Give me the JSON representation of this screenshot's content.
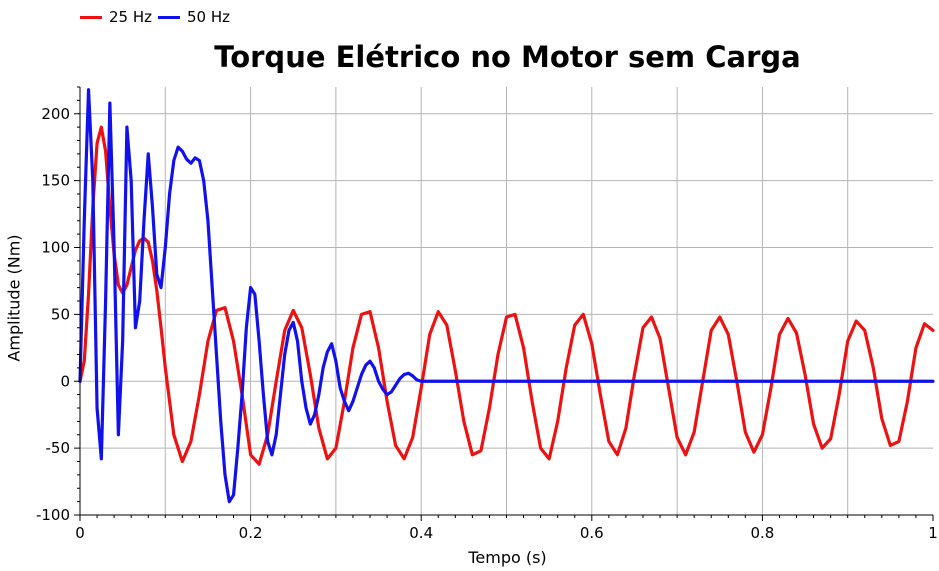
{
  "chart_data": {
    "type": "line",
    "title": "Torque Elétrico no Motor sem Carga",
    "xlabel": "Tempo (s)",
    "ylabel": "Amplitude (Nm)",
    "xlim": [
      0,
      1
    ],
    "ylim": [
      -100,
      220
    ],
    "x_ticks": [
      "0",
      "0.2",
      "0.4",
      "0.6",
      "0.8",
      "1"
    ],
    "y_ticks": [
      "-100",
      "-50",
      "0",
      "50",
      "100",
      "150",
      "200"
    ],
    "grid": true,
    "legend_position": "top-left",
    "series": [
      {
        "name": "25 Hz",
        "color": "#ee1111",
        "x": [
          0,
          0.005,
          0.01,
          0.015,
          0.02,
          0.025,
          0.03,
          0.035,
          0.04,
          0.045,
          0.05,
          0.055,
          0.06,
          0.065,
          0.07,
          0.075,
          0.08,
          0.085,
          0.09,
          0.095,
          0.1,
          0.11,
          0.12,
          0.13,
          0.14,
          0.15,
          0.16,
          0.17,
          0.18,
          0.19,
          0.2,
          0.21,
          0.22,
          0.23,
          0.24,
          0.25,
          0.26,
          0.27,
          0.28,
          0.29,
          0.3,
          0.31,
          0.32,
          0.33,
          0.34,
          0.35,
          0.36,
          0.37,
          0.38,
          0.39,
          0.4,
          0.41,
          0.42,
          0.43,
          0.44,
          0.45,
          0.46,
          0.47,
          0.48,
          0.49,
          0.5,
          0.51,
          0.52,
          0.53,
          0.54,
          0.55,
          0.56,
          0.57,
          0.58,
          0.59,
          0.6,
          0.61,
          0.62,
          0.63,
          0.64,
          0.65,
          0.66,
          0.67,
          0.68,
          0.69,
          0.7,
          0.71,
          0.72,
          0.73,
          0.74,
          0.75,
          0.76,
          0.77,
          0.78,
          0.79,
          0.8,
          0.81,
          0.82,
          0.83,
          0.84,
          0.85,
          0.86,
          0.87,
          0.88,
          0.89,
          0.9,
          0.91,
          0.92,
          0.93,
          0.94,
          0.95,
          0.96,
          0.97,
          0.98,
          0.99,
          1.0
        ],
        "values": [
          0,
          15,
          65,
          130,
          178,
          190,
          172,
          130,
          95,
          72,
          66,
          72,
          85,
          98,
          105,
          107,
          104,
          90,
          68,
          40,
          10,
          -40,
          -60,
          -45,
          -10,
          30,
          53,
          55,
          30,
          -10,
          -55,
          -62,
          -40,
          0,
          38,
          53,
          40,
          5,
          -35,
          -58,
          -50,
          -15,
          25,
          50,
          52,
          25,
          -15,
          -48,
          -58,
          -42,
          -5,
          35,
          52,
          42,
          8,
          -30,
          -55,
          -52,
          -20,
          20,
          48,
          50,
          25,
          -15,
          -50,
          -58,
          -30,
          10,
          42,
          50,
          28,
          -10,
          -45,
          -55,
          -35,
          5,
          40,
          48,
          32,
          -5,
          -42,
          -55,
          -38,
          0,
          38,
          48,
          35,
          0,
          -38,
          -53,
          -40,
          -5,
          35,
          47,
          36,
          5,
          -32,
          -50,
          -43,
          -10,
          30,
          45,
          38,
          10,
          -28,
          -48,
          -45,
          -15,
          25,
          43,
          38
        ]
      },
      {
        "name": "50 Hz",
        "color": "#1111ee",
        "x": [
          0,
          0.005,
          0.01,
          0.015,
          0.02,
          0.025,
          0.03,
          0.035,
          0.04,
          0.045,
          0.05,
          0.055,
          0.06,
          0.065,
          0.07,
          0.075,
          0.08,
          0.085,
          0.09,
          0.095,
          0.1,
          0.105,
          0.11,
          0.115,
          0.12,
          0.125,
          0.13,
          0.135,
          0.14,
          0.145,
          0.15,
          0.155,
          0.16,
          0.165,
          0.17,
          0.175,
          0.18,
          0.185,
          0.19,
          0.195,
          0.2,
          0.205,
          0.21,
          0.215,
          0.22,
          0.225,
          0.23,
          0.235,
          0.24,
          0.245,
          0.25,
          0.255,
          0.26,
          0.265,
          0.27,
          0.275,
          0.28,
          0.285,
          0.29,
          0.295,
          0.3,
          0.305,
          0.31,
          0.315,
          0.32,
          0.325,
          0.33,
          0.335,
          0.34,
          0.345,
          0.35,
          0.355,
          0.36,
          0.365,
          0.37,
          0.375,
          0.38,
          0.385,
          0.39,
          0.395,
          0.4,
          0.41,
          0.42,
          0.43,
          0.44,
          0.45,
          0.46,
          0.47,
          0.48,
          0.49,
          0.5,
          0.51,
          0.52,
          0.53,
          0.54,
          0.55,
          0.56,
          0.57,
          0.58,
          0.59,
          0.6,
          0.61,
          0.62,
          0.63,
          0.64,
          0.65,
          0.66,
          0.67,
          0.68,
          0.7,
          0.72,
          0.74,
          0.76,
          0.78,
          0.8,
          0.82,
          0.84,
          0.86,
          0.88,
          0.9,
          0.92,
          0.94,
          0.96,
          0.98,
          1.0
        ],
        "values": [
          0,
          120,
          218,
          150,
          -20,
          -58,
          60,
          208,
          100,
          -40,
          30,
          190,
          150,
          40,
          60,
          120,
          170,
          130,
          80,
          70,
          100,
          140,
          165,
          175,
          172,
          166,
          163,
          167,
          165,
          150,
          120,
          70,
          20,
          -30,
          -70,
          -90,
          -85,
          -50,
          -10,
          40,
          70,
          65,
          30,
          -10,
          -45,
          -55,
          -40,
          -10,
          20,
          38,
          44,
          30,
          0,
          -20,
          -32,
          -25,
          -10,
          10,
          22,
          28,
          15,
          -5,
          -15,
          -22,
          -15,
          -5,
          5,
          12,
          15,
          10,
          0,
          -6,
          -10,
          -8,
          -3,
          2,
          5,
          6,
          4,
          1,
          0,
          0,
          0,
          0,
          0,
          0,
          0,
          0,
          0,
          0,
          0,
          0,
          0,
          0,
          0,
          0,
          0,
          0,
          0,
          0,
          0,
          0,
          0,
          0,
          0,
          0,
          0,
          0,
          0,
          0,
          0,
          0,
          0,
          0,
          0,
          0,
          0,
          0,
          0,
          0,
          0,
          0,
          0,
          0,
          0
        ]
      }
    ]
  }
}
